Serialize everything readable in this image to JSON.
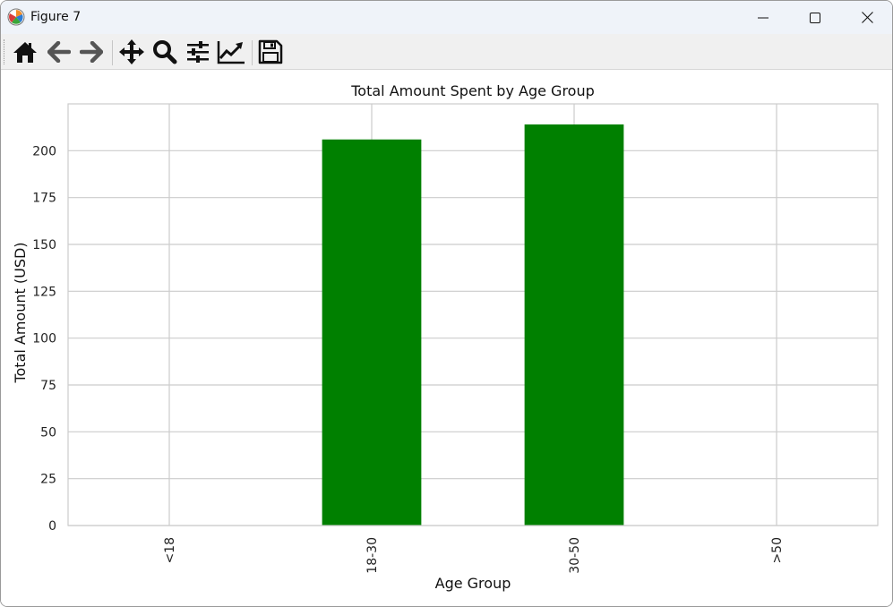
{
  "window": {
    "title": "Figure 7",
    "buttons": {
      "minimize": "minimize-icon",
      "maximize": "maximize-icon",
      "close": "close-icon"
    }
  },
  "toolbar": {
    "tools": [
      {
        "name": "home",
        "icon": "home-icon"
      },
      {
        "name": "back",
        "icon": "arrow-left-icon"
      },
      {
        "name": "forward",
        "icon": "arrow-right-icon"
      },
      {
        "name": "pan",
        "icon": "move-icon"
      },
      {
        "name": "zoom",
        "icon": "magnifier-icon"
      },
      {
        "name": "subplots",
        "icon": "sliders-icon"
      },
      {
        "name": "customize",
        "icon": "line-chart-icon"
      },
      {
        "name": "save",
        "icon": "floppy-icon"
      }
    ]
  },
  "chart_data": {
    "type": "bar",
    "title": "Total Amount Spent by Age Group",
    "xlabel": "Age Group",
    "ylabel": "Total Amount (USD)",
    "categories": [
      "<18",
      "18-30",
      "30-50",
      ">50"
    ],
    "values": [
      0,
      206,
      214,
      0
    ],
    "ylim": [
      0,
      225
    ],
    "yticks": [
      0,
      25,
      50,
      75,
      100,
      125,
      150,
      175,
      200
    ],
    "grid": true,
    "bar_color": "#008000",
    "tick_rotation": 90
  }
}
